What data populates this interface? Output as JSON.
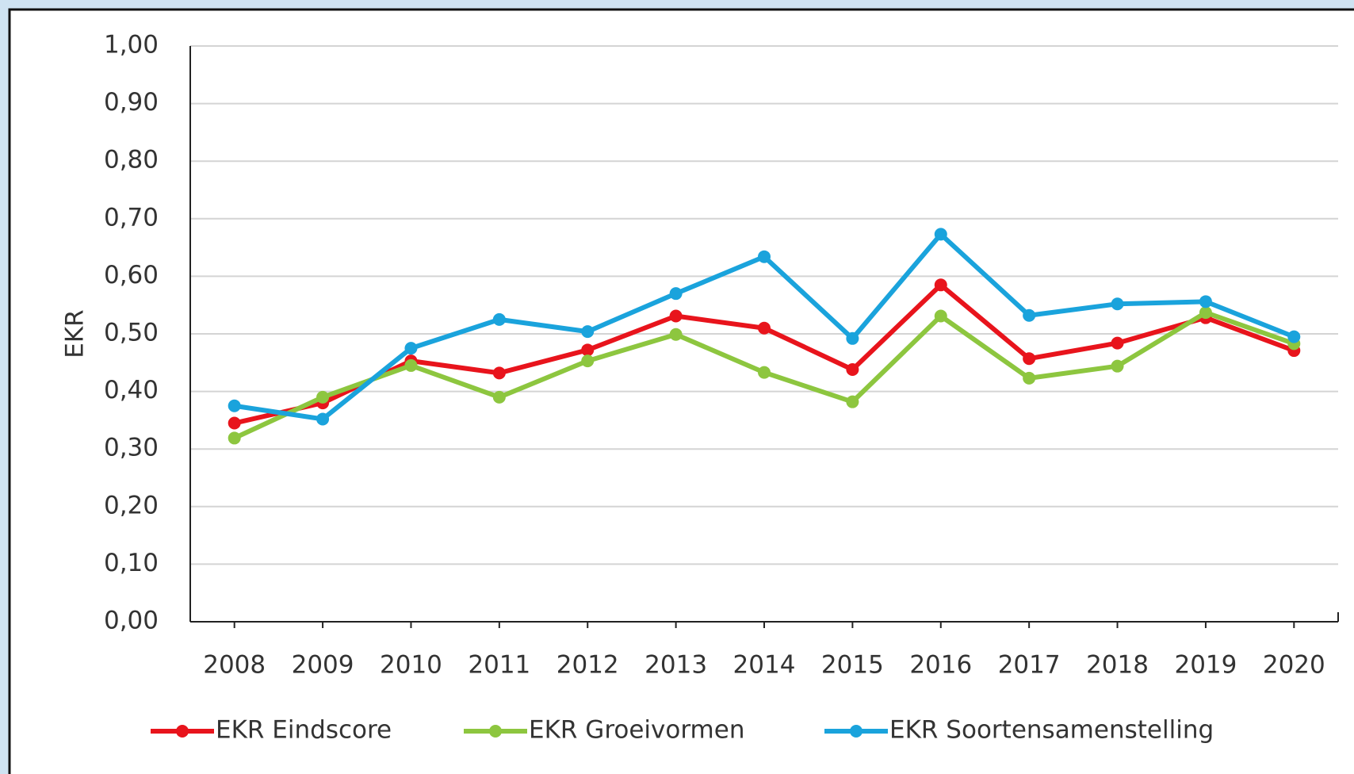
{
  "chart_data": {
    "type": "line",
    "y_label": "EKR",
    "categories": [
      "2008",
      "2009",
      "2010",
      "2011",
      "2012",
      "2013",
      "2014",
      "2015",
      "2016",
      "2017",
      "2018",
      "2019",
      "2020"
    ],
    "series": [
      {
        "name": "EKR Eindscore",
        "color": "#e8141c",
        "values": [
          0.345,
          0.38,
          0.453,
          0.432,
          0.472,
          0.531,
          0.51,
          0.438,
          0.585,
          0.457,
          0.484,
          0.528,
          0.471
        ]
      },
      {
        "name": "EKR Groeivormen",
        "color": "#8dc63f",
        "values": [
          0.319,
          0.39,
          0.445,
          0.39,
          0.453,
          0.499,
          0.433,
          0.382,
          0.531,
          0.423,
          0.444,
          0.537,
          0.483
        ]
      },
      {
        "name": "EKR Soortensamenstelling",
        "color": "#1aa3dc",
        "values": [
          0.375,
          0.352,
          0.475,
          0.525,
          0.504,
          0.57,
          0.634,
          0.492,
          0.673,
          0.532,
          0.552,
          0.556,
          0.495
        ]
      }
    ],
    "ylim": [
      0,
      1
    ],
    "yticks": [
      {
        "value": 0,
        "label": "0,00"
      },
      {
        "value": 0.1,
        "label": "0,10"
      },
      {
        "value": 0.2,
        "label": "0,20"
      },
      {
        "value": 0.3,
        "label": "0,30"
      },
      {
        "value": 0.4,
        "label": "0,40"
      },
      {
        "value": 0.5,
        "label": "0,50"
      },
      {
        "value": 0.6,
        "label": "0,60"
      },
      {
        "value": 0.7,
        "label": "0,70"
      },
      {
        "value": 0.8,
        "label": "0,80"
      },
      {
        "value": 0.9,
        "label": "0,90"
      },
      {
        "value": 1,
        "label": "1,00"
      }
    ],
    "grid": true,
    "legend": "bottom"
  }
}
